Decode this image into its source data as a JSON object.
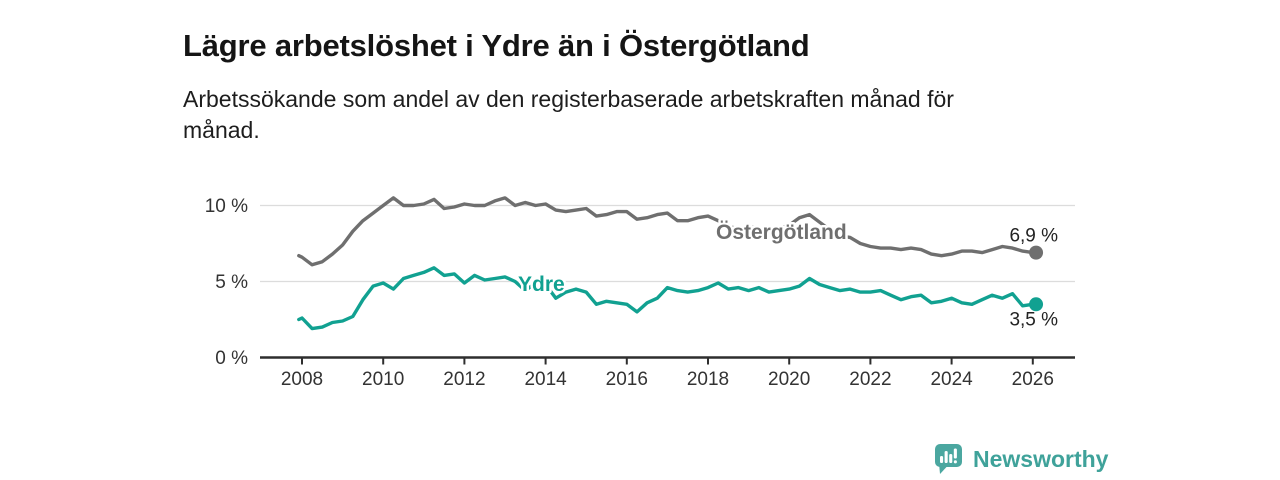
{
  "chart_data": {
    "type": "line",
    "title": "Lägre arbetslöshet i Ydre än i Östergötland",
    "subtitle": "Arbetssökande som andel av den registerbaserade arbetskraften månad för månad.",
    "subtitle_lines": [
      "Arbetssökande som andel av den registerbaserade arbetskraften månad för",
      "månad."
    ],
    "unit": "%",
    "grid": true,
    "legend_position": "inline-labels",
    "xlim": [
      2007,
      2027
    ],
    "ylim": [
      0,
      11.5
    ],
    "axis_color": "#2e2e2e",
    "grid_color": "#dcdcdc",
    "axis_text_color": "#333333",
    "value_label_color": "#222222",
    "x_axis": {
      "ticks": [
        2008,
        2010,
        2012,
        2014,
        2016,
        2018,
        2020,
        2022,
        2024,
        2026
      ]
    },
    "y_axis": {
      "ticks": [
        {
          "value": 10,
          "label": "10 %"
        },
        {
          "value": 5,
          "label": "5 %"
        },
        {
          "value": 0,
          "label": "0 %"
        }
      ]
    },
    "x": [
      2007.92,
      2008,
      2008.25,
      2008.5,
      2008.75,
      2009,
      2009.25,
      2009.5,
      2009.75,
      2010,
      2010.25,
      2010.5,
      2010.75,
      2011,
      2011.25,
      2011.5,
      2011.75,
      2012,
      2012.25,
      2012.5,
      2012.75,
      2013,
      2013.25,
      2013.5,
      2013.75,
      2014,
      2014.25,
      2014.5,
      2014.75,
      2015,
      2015.25,
      2015.5,
      2015.75,
      2016,
      2016.25,
      2016.5,
      2016.75,
      2017,
      2017.25,
      2017.5,
      2017.75,
      2018,
      2018.25,
      2018.5,
      2018.75,
      2019,
      2019.25,
      2019.5,
      2019.75,
      2020,
      2020.25,
      2020.5,
      2020.75,
      2021,
      2021.25,
      2021.5,
      2021.75,
      2022,
      2022.25,
      2022.5,
      2022.75,
      2023,
      2023.25,
      2023.5,
      2023.75,
      2024,
      2024.25,
      2024.5,
      2024.75,
      2025,
      2025.25,
      2025.5,
      2025.75,
      2026,
      2026.08
    ],
    "series": [
      {
        "name": "Östergötland",
        "color": "#6f6f6f",
        "end_label": "6,9 %",
        "end_value": 6.9,
        "values": [
          6.7,
          6.6,
          6.1,
          6.3,
          6.8,
          7.4,
          8.3,
          9.0,
          9.5,
          10.0,
          10.5,
          10.0,
          10.0,
          10.1,
          10.4,
          9.8,
          9.9,
          10.1,
          10.0,
          10.0,
          10.3,
          10.5,
          10.0,
          10.2,
          10.0,
          10.1,
          9.7,
          9.6,
          9.7,
          9.8,
          9.3,
          9.4,
          9.6,
          9.6,
          9.1,
          9.2,
          9.4,
          9.5,
          9.0,
          9.0,
          9.2,
          9.3,
          9.0,
          8.6,
          8.5,
          8.6,
          8.5,
          8.4,
          8.5,
          8.7,
          9.2,
          9.4,
          8.9,
          8.4,
          8.0,
          7.9,
          7.5,
          7.3,
          7.2,
          7.2,
          7.1,
          7.2,
          7.1,
          6.8,
          6.7,
          6.8,
          7.0,
          7.0,
          6.9,
          7.1,
          7.3,
          7.2,
          7.0,
          6.9,
          6.9
        ]
      },
      {
        "name": "Ydre",
        "color": "#11a191",
        "end_label": "3,5 %",
        "end_value": 3.5,
        "values": [
          2.5,
          2.6,
          1.9,
          2.0,
          2.3,
          2.4,
          2.7,
          3.8,
          4.7,
          4.9,
          4.5,
          5.2,
          5.4,
          5.6,
          5.9,
          5.4,
          5.5,
          4.9,
          5.4,
          5.1,
          5.2,
          5.3,
          5.0,
          4.4,
          4.9,
          4.8,
          3.9,
          4.3,
          4.5,
          4.3,
          3.5,
          3.7,
          3.6,
          3.5,
          3.0,
          3.6,
          3.9,
          4.6,
          4.4,
          4.3,
          4.4,
          4.6,
          4.9,
          4.5,
          4.6,
          4.4,
          4.6,
          4.3,
          4.4,
          4.5,
          4.7,
          5.2,
          4.8,
          4.6,
          4.4,
          4.5,
          4.3,
          4.3,
          4.4,
          4.1,
          3.8,
          4.0,
          4.1,
          3.6,
          3.7,
          3.9,
          3.6,
          3.5,
          3.8,
          4.1,
          3.9,
          4.2,
          3.4,
          3.5,
          3.5
        ]
      }
    ]
  },
  "footer": {
    "brand": "Newsworthy",
    "brand_color": "#3fa29a",
    "icon_color": "#4ba7a0"
  }
}
